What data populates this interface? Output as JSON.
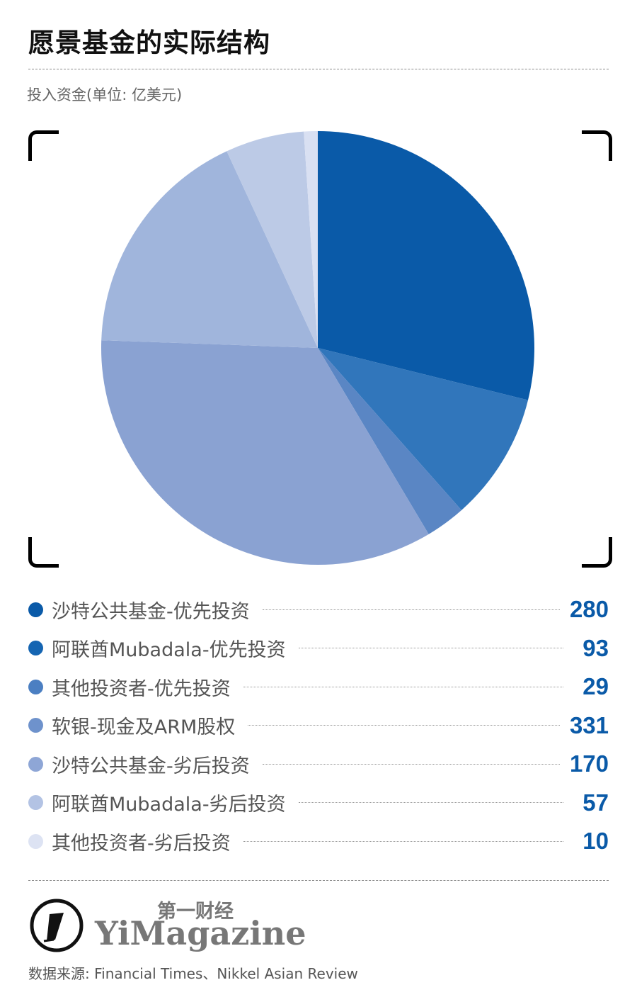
{
  "header": {
    "title": "愿景基金的实际结构",
    "subtitle": "投入资金(单位: 亿美元)"
  },
  "chart_data": {
    "type": "pie",
    "title": "愿景基金的实际结构",
    "subtitle": "投入资金(单位: 亿美元)",
    "unit": "亿美元",
    "start_angle": "12 o'clock, clockwise",
    "categories": [
      "沙特公共基金-优先投资",
      "阿联酋Mubadala-优先投资",
      "其他投资者-优先投资",
      "软银-现金及ARM股权",
      "沙特公共基金-劣后投资",
      "阿联酋Mubadala-劣后投资",
      "其他投资者-劣后投资"
    ],
    "values": [
      280,
      93,
      29,
      331,
      170,
      57,
      10
    ],
    "colors": [
      "#0a5aa8",
      "#3176bb",
      "#5a86c4",
      "#8aa2d2",
      "#a0b5dc",
      "#bccae6",
      "#d9e0f2"
    ],
    "legend_position": "bottom"
  },
  "legend": {
    "items": [
      {
        "label": "沙特公共基金-优先投资",
        "value": "280",
        "color": "#0a5aa8"
      },
      {
        "label": "阿联酋Mubadala-优先投资",
        "value": "93",
        "color": "#1565b2"
      },
      {
        "label": "其他投资者-优先投资",
        "value": "29",
        "color": "#4b7fc2"
      },
      {
        "label": "软银-现金及ARM股权",
        "value": "331",
        "color": "#6e92cc"
      },
      {
        "label": "沙特公共基金-劣后投资",
        "value": "170",
        "color": "#8ea6d6"
      },
      {
        "label": "阿联酋Mubadala-劣后投资",
        "value": "57",
        "color": "#b3c3e4"
      },
      {
        "label": "其他投资者-劣后投资",
        "value": "10",
        "color": "#dde3f3"
      }
    ]
  },
  "footer": {
    "logo_cn": "第一财经",
    "logo_en": "YiMagazine",
    "source": "数据来源: Financial Times、Nikkel Asian Review"
  }
}
